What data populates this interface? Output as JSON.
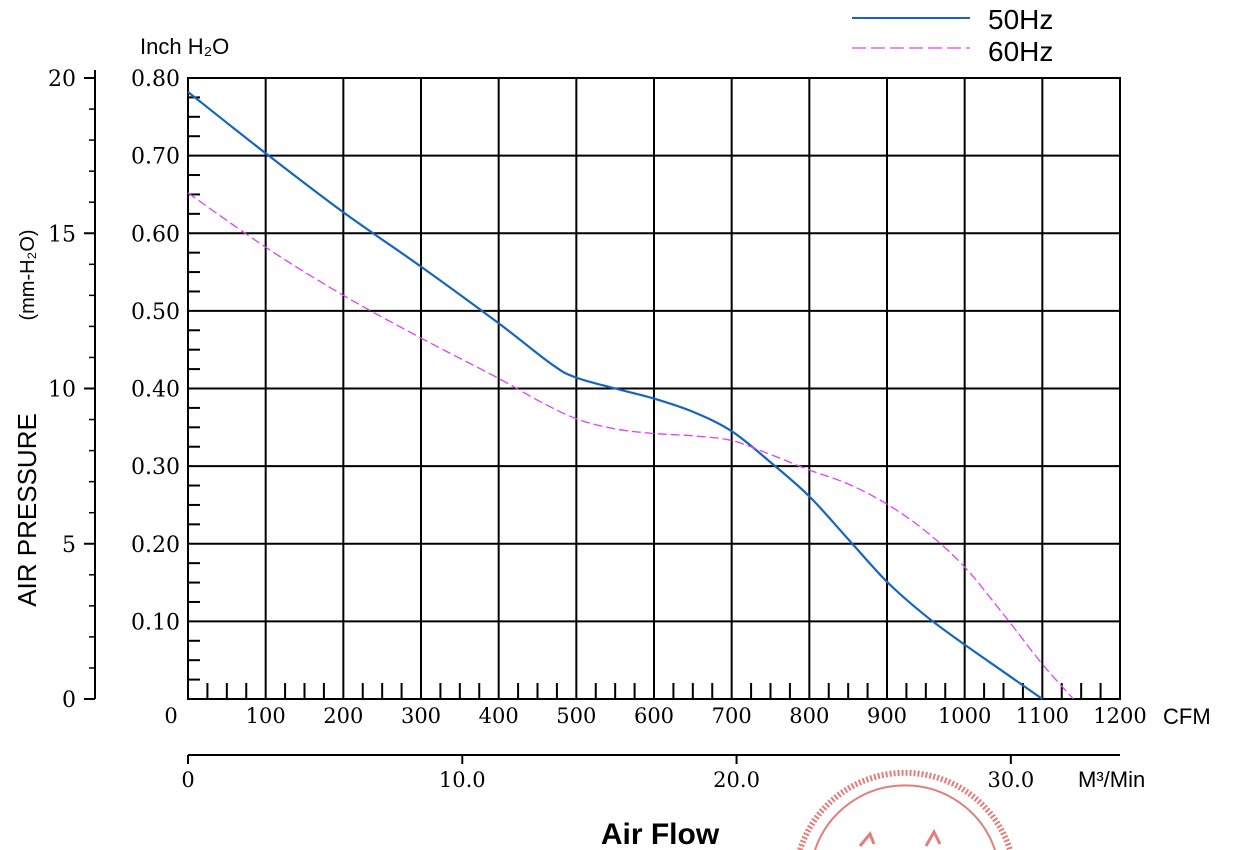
{
  "chart_data": {
    "type": "line",
    "title": "",
    "xlabel": "Air Flow",
    "ylabel": "AIR PRESSURE",
    "ylabel_unit": "(mm-H₂O)",
    "top_unit": "Inch H₂O",
    "x_unit": "CFM",
    "x2_unit": "M³/Min",
    "xlim": [
      0,
      1200
    ],
    "ylim_inch": [
      0,
      0.8
    ],
    "ylim_mm": [
      0,
      20
    ],
    "x2lim": [
      0,
      33.98
    ],
    "grid": true,
    "legend_position": "top-right",
    "x_ticks": [
      "0",
      "100",
      "200",
      "300",
      "400",
      "500",
      "600",
      "700",
      "800",
      "900",
      "1000",
      "1100",
      "1200"
    ],
    "inch_ticks": [
      "0.10",
      "0.20",
      "0.30",
      "0.40",
      "0.50",
      "0.60",
      "0.70",
      "0.80"
    ],
    "mm_ticks": [
      "0",
      "5",
      "10",
      "15",
      "20"
    ],
    "x2_ticks": [
      "0",
      "10.0",
      "20.0",
      "30.0"
    ],
    "series": [
      {
        "name": "50Hz",
        "color": "#1565c0",
        "style": "solid",
        "x": [
          0,
          100,
          200,
          300,
          400,
          470,
          500,
          550,
          600,
          650,
          700,
          750,
          800,
          850,
          900,
          950,
          1000,
          1050,
          1100
        ],
        "y": [
          0.782,
          0.703,
          0.627,
          0.557,
          0.484,
          0.43,
          0.414,
          0.4,
          0.387,
          0.37,
          0.345,
          0.305,
          0.261,
          0.206,
          0.151,
          0.107,
          0.07,
          0.035,
          0.0
        ]
      },
      {
        "name": "60Hz",
        "color": "#e040fb",
        "style": "dashed",
        "x": [
          0,
          100,
          200,
          300,
          400,
          450,
          500,
          550,
          600,
          650,
          700,
          750,
          800,
          850,
          900,
          950,
          1000,
          1050,
          1100,
          1140
        ],
        "y": [
          0.652,
          0.582,
          0.52,
          0.465,
          0.413,
          0.385,
          0.361,
          0.348,
          0.342,
          0.339,
          0.333,
          0.315,
          0.295,
          0.277,
          0.251,
          0.216,
          0.17,
          0.109,
          0.045,
          0.0
        ]
      }
    ]
  }
}
